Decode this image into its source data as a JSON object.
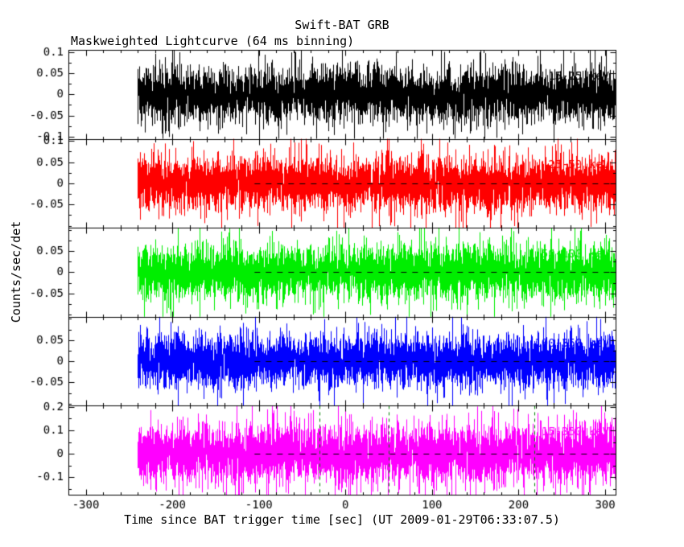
{
  "figure": {
    "title": "Swift-BAT GRB",
    "subtitle": "Maskweighted Lightcurve (64 ms binning)",
    "xlabel": "Time since BAT trigger time [sec] (UT 2009-01-29T06:33:07.5)",
    "ylabel": "Counts/sec/det"
  },
  "chart_data": {
    "type": "line",
    "title": "Swift-BAT GRB",
    "subtitle": "Maskweighted Lightcurve (64 ms binning)",
    "xlabel": "Time since BAT trigger time [sec] (UT 2009-01-29T06:33:07.5)",
    "ylabel": "Counts/sec/det",
    "bin_ms": 64,
    "trigger_utc": "2009-01-29T06:33:07.5",
    "grid": false,
    "legend": "none",
    "description": "Five vertically stacked mask-weighted lightcurve panels; each is zero-mean detector noise from t=-240 s to t=+311 s with no visible burst. Dashed black line marks zero level; dashed green vertical lines mark interval boundaries on bottom panel.",
    "x": {
      "min": -320,
      "max": 312,
      "ticks": [
        -300,
        -200,
        -100,
        0,
        100,
        200,
        300
      ],
      "minor_step": 20,
      "data_start": -240,
      "data_end": 311
    },
    "zero_line_color": "#000000",
    "vline_color": "#008000",
    "panels": [
      {
        "band": "15-25 keV",
        "color": "#000000",
        "ylim": [
          -0.105,
          0.105
        ],
        "yticks": [
          0.1,
          0.05,
          0,
          -0.05,
          -0.1
        ],
        "ytick_labels": [
          "0.1",
          "0.05",
          "0",
          "-0.05",
          "-0.1"
        ],
        "y_minor_step": 0.025,
        "noise_sigma": 0.032,
        "zero_line_start": null,
        "vlines": []
      },
      {
        "band": "25-50 keV",
        "color": "#ff0000",
        "ylim": [
          -0.105,
          0.105
        ],
        "yticks": [
          0.1,
          0.05,
          0,
          -0.05
        ],
        "ytick_labels": [
          "0.1",
          "0.05",
          "0",
          "-0.05"
        ],
        "y_minor_step": 0.025,
        "noise_sigma": 0.032,
        "zero_line_start": -105,
        "vlines": []
      },
      {
        "band": "50-100 keV",
        "color": "#00ee00",
        "ylim": [
          -0.105,
          0.105
        ],
        "yticks": [
          0.05,
          0,
          -0.05
        ],
        "ytick_labels": [
          "0.05",
          "0",
          "-0.05"
        ],
        "y_minor_step": 0.025,
        "noise_sigma": 0.032,
        "zero_line_start": -105,
        "vlines": []
      },
      {
        "band": "100-350 keV",
        "color": "#0000ff",
        "ylim": [
          -0.105,
          0.105
        ],
        "yticks": [
          0.05,
          0,
          -0.05
        ],
        "ytick_labels": [
          "0.05",
          "0",
          "-0.05"
        ],
        "y_minor_step": 0.025,
        "noise_sigma": 0.032,
        "zero_line_start": -105,
        "vlines": []
      },
      {
        "band": "15-350 keV",
        "color": "#ff00ff",
        "ylim": [
          -0.175,
          0.205
        ],
        "yticks": [
          0.2,
          0.1,
          0,
          -0.1
        ],
        "ytick_labels": [
          "0.2",
          "0.1",
          "0",
          "-0.1"
        ],
        "y_minor_step": 0.05,
        "noise_sigma": 0.065,
        "zero_line_start": -105,
        "vlines": [
          -30,
          50,
          218
        ]
      }
    ]
  }
}
